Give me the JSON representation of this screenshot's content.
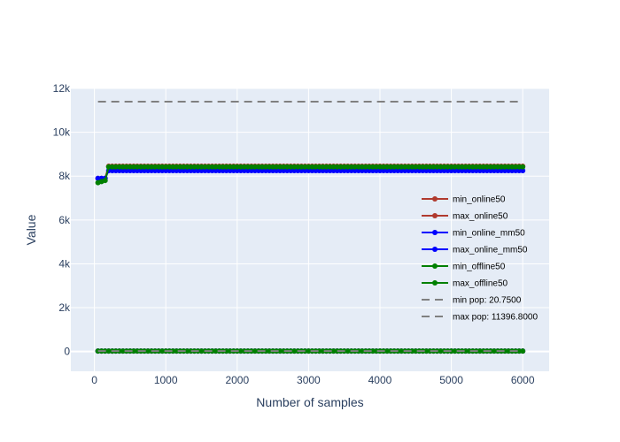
{
  "chart_data": {
    "type": "line",
    "title": "",
    "xlabel": "Number of samples",
    "ylabel": "Value",
    "xlim": [
      -330,
      6370
    ],
    "ylim": [
      -900,
      12000
    ],
    "x_ticks": [
      0,
      1000,
      2000,
      3000,
      4000,
      5000,
      6000
    ],
    "x_tick_labels": [
      "0",
      "1000",
      "2000",
      "3000",
      "4000",
      "5000",
      "6000"
    ],
    "y_ticks": [
      0,
      2000,
      4000,
      6000,
      8000,
      10000,
      12000
    ],
    "y_tick_labels": [
      "0",
      "2k",
      "4k",
      "6k",
      "8k",
      "10k",
      "12k"
    ],
    "grid": true,
    "legend_position": "right",
    "series": [
      {
        "name": "min_online50",
        "color": "#b03a2e",
        "dash": false,
        "markers": true,
        "x_start": 50,
        "x_step": 50,
        "x_end": 6000,
        "points": [
          [
            50,
            21
          ],
          [
            6000,
            21
          ]
        ]
      },
      {
        "name": "max_online50",
        "color": "#b03a2e",
        "dash": false,
        "markers": true,
        "x_start": 50,
        "x_step": 50,
        "x_end": 6000,
        "points": [
          [
            50,
            7900
          ],
          [
            150,
            7900
          ],
          [
            200,
            8450
          ],
          [
            6000,
            8450
          ]
        ]
      },
      {
        "name": "min_online_mm50",
        "color": "#0000ff",
        "dash": false,
        "markers": true,
        "x_start": 50,
        "x_step": 50,
        "x_end": 6000,
        "points": [
          [
            50,
            21
          ],
          [
            6000,
            21
          ]
        ]
      },
      {
        "name": "max_online_mm50",
        "color": "#0000ff",
        "dash": false,
        "markers": true,
        "x_start": 50,
        "x_step": 50,
        "x_end": 6000,
        "points": [
          [
            50,
            7900
          ],
          [
            150,
            7900
          ],
          [
            200,
            8250
          ],
          [
            6000,
            8250
          ]
        ]
      },
      {
        "name": "min_offline50",
        "color": "#008000",
        "dash": false,
        "markers": true,
        "x_start": 50,
        "x_step": 50,
        "x_end": 6000,
        "points": [
          [
            50,
            21
          ],
          [
            6000,
            21
          ]
        ]
      },
      {
        "name": "max_offline50",
        "color": "#008000",
        "dash": false,
        "markers": true,
        "x_start": 50,
        "x_step": 50,
        "x_end": 6000,
        "points": [
          [
            50,
            7700
          ],
          [
            150,
            7800
          ],
          [
            200,
            8420
          ],
          [
            6000,
            8420
          ]
        ]
      },
      {
        "name": "min pop: 20.7500",
        "color": "#808080",
        "dash": true,
        "markers": false,
        "points": [
          [
            50,
            20.75
          ],
          [
            6000,
            20.75
          ]
        ]
      },
      {
        "name": "max pop: 11396.8000",
        "color": "#808080",
        "dash": true,
        "markers": false,
        "points": [
          [
            50,
            11396.8
          ],
          [
            6000,
            11396.8
          ]
        ]
      }
    ]
  }
}
